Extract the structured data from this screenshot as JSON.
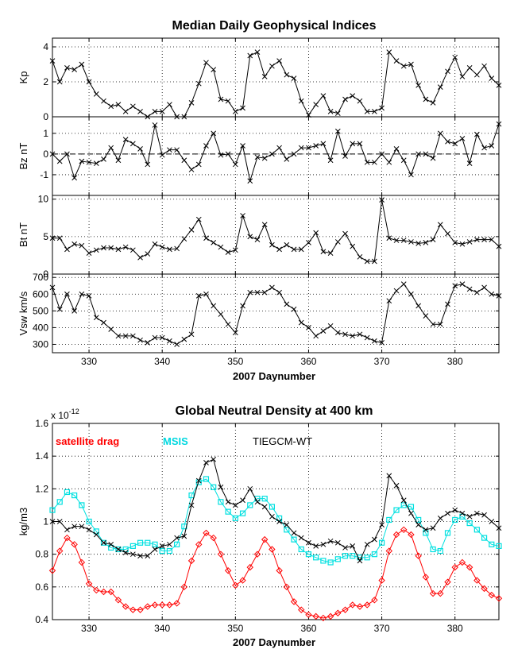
{
  "chart_data": [
    {
      "type": "line",
      "title": "Median Daily Geophysical Indices",
      "xlabel": "2007 Daynumber",
      "xlim": [
        325,
        386
      ],
      "xticks": [
        330,
        340,
        350,
        360,
        370,
        380
      ],
      "panels": [
        {
          "ylabel": "Kp",
          "ylim": [
            0,
            4.5
          ],
          "yticks": [
            0,
            2,
            4
          ],
          "x": [
            325,
            326,
            327,
            328,
            329,
            330,
            331,
            332,
            333,
            334,
            335,
            336,
            337,
            338,
            339,
            340,
            341,
            342,
            343,
            344,
            345,
            346,
            347,
            348,
            349,
            350,
            351,
            352,
            353,
            354,
            355,
            356,
            357,
            358,
            359,
            360,
            361,
            362,
            363,
            364,
            365,
            366,
            367,
            368,
            369,
            370,
            371,
            372,
            373,
            374,
            375,
            376,
            377,
            378,
            379,
            380,
            381,
            382,
            383,
            384,
            385,
            386
          ],
          "y": [
            3.2,
            2.0,
            2.8,
            2.7,
            3.0,
            2.0,
            1.3,
            0.9,
            0.6,
            0.7,
            0.3,
            0.6,
            0.3,
            0.0,
            0.3,
            0.3,
            0.7,
            0.0,
            0.0,
            0.8,
            1.9,
            3.1,
            2.7,
            1.0,
            0.9,
            0.3,
            0.5,
            3.5,
            3.7,
            2.3,
            2.9,
            3.2,
            2.4,
            2.2,
            0.9,
            0.1,
            0.7,
            1.2,
            0.3,
            0.2,
            1.0,
            1.2,
            0.9,
            0.3,
            0.3,
            0.5,
            3.7,
            3.2,
            2.9,
            3.0,
            1.8,
            1.0,
            0.8,
            1.7,
            2.6,
            3.4,
            2.3,
            2.8,
            2.4,
            2.9,
            2.2,
            1.8
          ],
          "dashed_zero": false
        },
        {
          "ylabel": "Bz nT",
          "ylim": [
            -2,
            1.8
          ],
          "yticks": [
            -1,
            0,
            1
          ],
          "x": [
            325,
            326,
            327,
            328,
            329,
            330,
            331,
            332,
            333,
            334,
            335,
            336,
            337,
            338,
            339,
            340,
            341,
            342,
            343,
            344,
            345,
            346,
            347,
            348,
            349,
            350,
            351,
            352,
            353,
            354,
            355,
            356,
            357,
            358,
            359,
            360,
            361,
            362,
            363,
            364,
            365,
            366,
            367,
            368,
            369,
            370,
            371,
            372,
            373,
            374,
            375,
            376,
            377,
            378,
            379,
            380,
            381,
            382,
            383,
            384,
            385,
            386
          ],
          "y": [
            0.0,
            -0.35,
            0.0,
            -1.15,
            -0.35,
            -0.4,
            -0.45,
            -0.25,
            0.3,
            -0.3,
            0.7,
            0.5,
            0.25,
            -0.5,
            1.4,
            -0.05,
            0.2,
            0.2,
            -0.3,
            -0.75,
            -0.5,
            0.4,
            1.0,
            -0.05,
            0.0,
            -0.5,
            0.4,
            -1.3,
            -0.15,
            -0.2,
            0.0,
            0.3,
            -0.25,
            0.0,
            0.3,
            0.3,
            0.4,
            0.5,
            -0.3,
            1.1,
            -0.1,
            0.5,
            0.5,
            -0.4,
            -0.4,
            0.0,
            -0.4,
            0.25,
            -0.3,
            -1.0,
            0.0,
            0.0,
            -0.2,
            1.0,
            0.6,
            0.5,
            0.75,
            -0.45,
            0.95,
            0.3,
            0.4,
            1.45
          ],
          "dashed_zero": true
        },
        {
          "ylabel": "Bt nT",
          "ylim": [
            0,
            10.5
          ],
          "yticks": [
            0,
            5,
            10
          ],
          "x": [
            325,
            326,
            327,
            328,
            329,
            330,
            331,
            332,
            333,
            334,
            335,
            336,
            337,
            338,
            339,
            340,
            341,
            342,
            343,
            344,
            345,
            346,
            347,
            348,
            349,
            350,
            351,
            352,
            353,
            354,
            355,
            356,
            357,
            358,
            359,
            360,
            361,
            362,
            363,
            364,
            365,
            366,
            367,
            368,
            369,
            370,
            371,
            372,
            373,
            374,
            375,
            376,
            377,
            378,
            379,
            380,
            381,
            382,
            383,
            384,
            385,
            386
          ],
          "y": [
            4.8,
            4.8,
            3.3,
            4.0,
            3.8,
            2.8,
            3.2,
            3.5,
            3.5,
            3.3,
            3.6,
            3.2,
            2.2,
            2.7,
            4.0,
            3.6,
            3.3,
            3.4,
            4.7,
            5.9,
            7.3,
            4.8,
            4.2,
            3.6,
            2.9,
            3.2,
            7.8,
            5.0,
            4.6,
            6.6,
            3.9,
            3.3,
            3.9,
            3.3,
            3.3,
            4.2,
            5.5,
            3.0,
            2.8,
            4.3,
            5.4,
            3.7,
            2.3,
            1.7,
            1.7,
            9.9,
            4.8,
            4.5,
            4.5,
            4.3,
            4.1,
            4.2,
            4.6,
            6.6,
            5.4,
            4.2,
            4.0,
            4.3,
            4.6,
            4.6,
            4.6,
            3.7
          ],
          "dashed_zero": false
        },
        {
          "ylabel": "Vsw km/s",
          "ylim": [
            250,
            720
          ],
          "yticks": [
            300,
            400,
            500,
            600,
            700
          ],
          "x": [
            325,
            326,
            327,
            328,
            329,
            330,
            331,
            332,
            333,
            334,
            335,
            336,
            337,
            338,
            339,
            340,
            341,
            342,
            343,
            344,
            345,
            346,
            347,
            348,
            349,
            350,
            351,
            352,
            353,
            354,
            355,
            356,
            357,
            358,
            359,
            360,
            361,
            362,
            363,
            364,
            365,
            366,
            367,
            368,
            369,
            370,
            371,
            372,
            373,
            374,
            375,
            376,
            377,
            378,
            379,
            380,
            381,
            382,
            383,
            384,
            385,
            386
          ],
          "y": [
            640,
            510,
            600,
            500,
            600,
            590,
            460,
            430,
            390,
            350,
            350,
            350,
            325,
            310,
            340,
            340,
            320,
            300,
            330,
            360,
            590,
            600,
            530,
            480,
            420,
            370,
            530,
            610,
            610,
            610,
            640,
            610,
            540,
            510,
            430,
            400,
            350,
            380,
            410,
            370,
            360,
            350,
            360,
            340,
            320,
            310,
            560,
            620,
            660,
            600,
            530,
            470,
            420,
            420,
            540,
            650,
            660,
            630,
            610,
            640,
            600,
            590
          ],
          "dashed_zero": false
        }
      ]
    },
    {
      "type": "line",
      "title": "Global Neutral Density at 400 km",
      "xlabel": "2007 Daynumber",
      "ylabel": "kg/m3",
      "yscale_label": "x 10",
      "yscale_exp": "-12",
      "xlim": [
        325,
        386
      ],
      "xticks": [
        330,
        340,
        350,
        360,
        370,
        380
      ],
      "ylim": [
        0.4,
        1.6
      ],
      "yticks": [
        0.4,
        0.6,
        0.8,
        1.0,
        1.2,
        1.4,
        1.6
      ],
      "legend": [
        "satellite drag",
        "MSIS",
        "TIEGCM-WT"
      ],
      "series": [
        {
          "name": "satellite drag",
          "color": "#ff0000",
          "marker": "diamond",
          "x": [
            325,
            326,
            327,
            328,
            329,
            330,
            331,
            332,
            333,
            334,
            335,
            336,
            337,
            338,
            339,
            340,
            341,
            342,
            343,
            344,
            345,
            346,
            347,
            348,
            349,
            350,
            351,
            352,
            353,
            354,
            355,
            356,
            357,
            358,
            359,
            360,
            361,
            362,
            363,
            364,
            365,
            366,
            367,
            368,
            369,
            370,
            371,
            372,
            373,
            374,
            375,
            376,
            377,
            378,
            379,
            380,
            381,
            382,
            383,
            384,
            385,
            386
          ],
          "y": [
            0.7,
            0.82,
            0.9,
            0.86,
            0.75,
            0.62,
            0.58,
            0.57,
            0.57,
            0.52,
            0.48,
            0.46,
            0.46,
            0.48,
            0.49,
            0.49,
            0.49,
            0.5,
            0.6,
            0.76,
            0.86,
            0.93,
            0.9,
            0.8,
            0.7,
            0.61,
            0.64,
            0.72,
            0.8,
            0.89,
            0.83,
            0.7,
            0.6,
            0.51,
            0.46,
            0.43,
            0.42,
            0.41,
            0.42,
            0.44,
            0.46,
            0.49,
            0.48,
            0.49,
            0.52,
            0.64,
            0.82,
            0.92,
            0.95,
            0.92,
            0.79,
            0.66,
            0.56,
            0.56,
            0.63,
            0.72,
            0.75,
            0.72,
            0.64,
            0.59,
            0.55,
            0.53
          ]
        },
        {
          "name": "MSIS",
          "color": "#00e0e0",
          "marker": "square",
          "x": [
            325,
            326,
            327,
            328,
            329,
            330,
            331,
            332,
            333,
            334,
            335,
            336,
            337,
            338,
            339,
            340,
            341,
            342,
            343,
            344,
            345,
            346,
            347,
            348,
            349,
            350,
            351,
            352,
            353,
            354,
            355,
            356,
            357,
            358,
            359,
            360,
            361,
            362,
            363,
            364,
            365,
            366,
            367,
            368,
            369,
            370,
            371,
            372,
            373,
            374,
            375,
            376,
            377,
            378,
            379,
            380,
            381,
            382,
            383,
            384,
            385,
            386
          ],
          "y": [
            1.07,
            1.12,
            1.18,
            1.16,
            1.1,
            1.0,
            0.94,
            0.87,
            0.84,
            0.83,
            0.83,
            0.85,
            0.87,
            0.87,
            0.86,
            0.82,
            0.82,
            0.86,
            0.97,
            1.16,
            1.24,
            1.26,
            1.21,
            1.12,
            1.06,
            1.02,
            1.05,
            1.1,
            1.14,
            1.14,
            1.09,
            1.02,
            0.95,
            0.89,
            0.83,
            0.8,
            0.78,
            0.76,
            0.75,
            0.77,
            0.79,
            0.79,
            0.78,
            0.78,
            0.8,
            0.87,
            1.01,
            1.07,
            1.1,
            1.09,
            1.01,
            0.93,
            0.83,
            0.82,
            0.93,
            1.01,
            1.03,
            0.99,
            0.95,
            0.9,
            0.86,
            0.85
          ]
        },
        {
          "name": "TIEGCM-WT",
          "color": "#000000",
          "marker": "x",
          "x": [
            325,
            326,
            327,
            328,
            329,
            330,
            331,
            332,
            333,
            334,
            335,
            336,
            337,
            338,
            339,
            340,
            341,
            342,
            343,
            344,
            345,
            346,
            347,
            348,
            349,
            350,
            351,
            352,
            353,
            354,
            355,
            356,
            357,
            358,
            359,
            360,
            361,
            362,
            363,
            364,
            365,
            366,
            367,
            368,
            369,
            370,
            371,
            372,
            373,
            374,
            375,
            376,
            377,
            378,
            379,
            380,
            381,
            382,
            383,
            384,
            385,
            386
          ],
          "y": [
            1.0,
            1.0,
            0.95,
            0.97,
            0.97,
            0.95,
            0.92,
            0.87,
            0.86,
            0.83,
            0.81,
            0.8,
            0.79,
            0.79,
            0.83,
            0.85,
            0.86,
            0.9,
            0.91,
            1.1,
            1.25,
            1.36,
            1.38,
            1.21,
            1.12,
            1.1,
            1.13,
            1.2,
            1.12,
            1.09,
            1.03,
            1.0,
            0.98,
            0.93,
            0.9,
            0.87,
            0.85,
            0.86,
            0.88,
            0.87,
            0.84,
            0.85,
            0.76,
            0.86,
            0.89,
            0.98,
            1.28,
            1.22,
            1.13,
            1.05,
            0.98,
            0.95,
            0.96,
            1.02,
            1.05,
            1.07,
            1.05,
            1.03,
            1.05,
            1.04,
            1.0,
            0.96
          ]
        }
      ]
    }
  ]
}
